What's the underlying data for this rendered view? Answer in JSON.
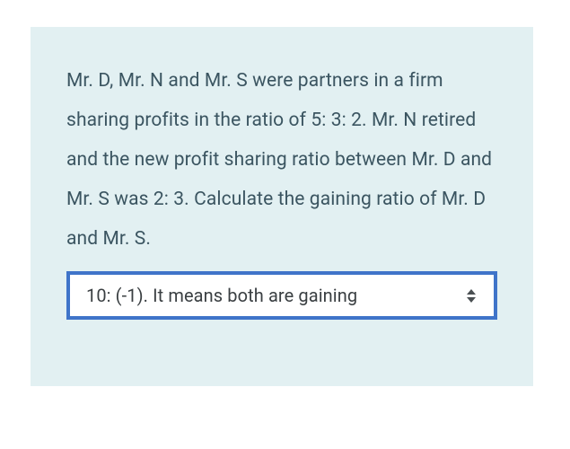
{
  "card": {
    "background_color": "#e2f0f2",
    "border_color": "#3f74c9",
    "question_text": "Mr. D, Mr. N and Mr. S were partners in a firm sharing profits in the ratio of 5: 3: 2. Mr. N retired and the new profit sharing ratio between Mr. D and Mr. S was 2: 3. Calculate the gaining ratio of Mr. D and Mr. S.",
    "question_color": "#3b5561",
    "question_fontsize": 21
  },
  "answer_select": {
    "selected_value": "10: (-1). It means both are gaining",
    "text_color": "#3a3f42",
    "border_color": "#3f74c9",
    "background_color": "#ffffff",
    "icon_color": "#4a4f52"
  }
}
